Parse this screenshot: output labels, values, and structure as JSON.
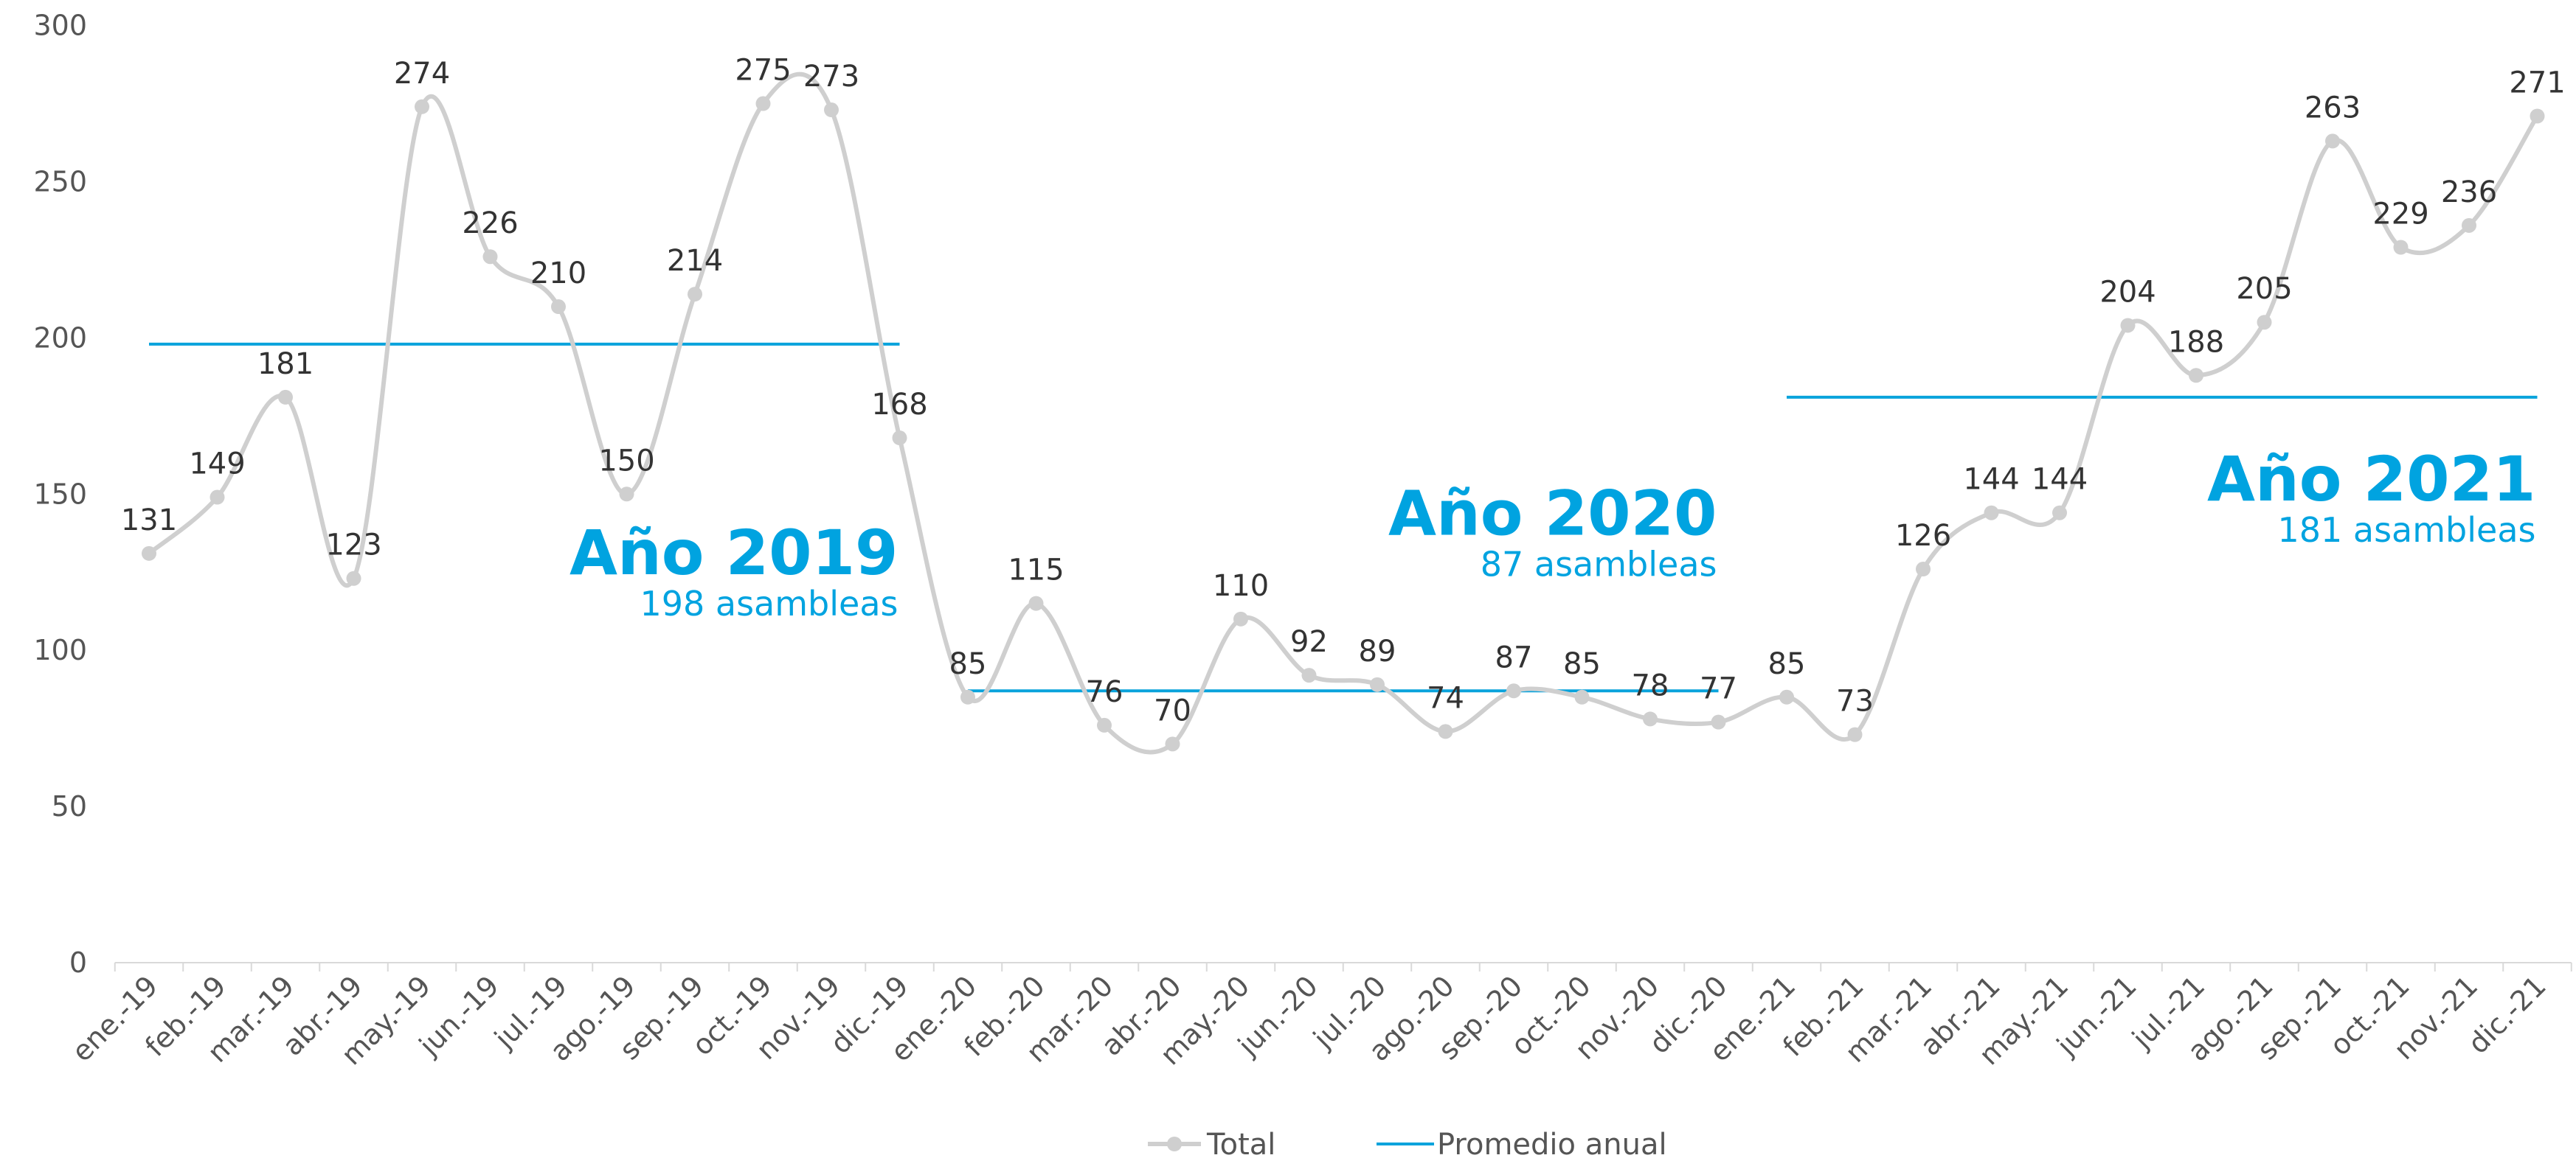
{
  "chart_data": {
    "type": "line",
    "title": "",
    "xlabel": "",
    "ylabel": "",
    "ylim": [
      0,
      300
    ],
    "yticks": [
      0,
      50,
      100,
      150,
      200,
      250,
      300
    ],
    "grid": false,
    "legend_placement": "bottom-center",
    "colors": {
      "total": "#cfcfcf",
      "average": "#0aa3dc",
      "annotation": "#00a3e0"
    },
    "categories": [
      "ene.-19",
      "feb.-19",
      "mar.-19",
      "abr.-19",
      "may.-19",
      "jun.-19",
      "jul.-19",
      "ago.-19",
      "sep.-19",
      "oct.-19",
      "nov.-19",
      "dic.-19",
      "ene.-20",
      "feb.-20",
      "mar.-20",
      "abr.-20",
      "may.-20",
      "jun.-20",
      "jul.-20",
      "ago.-20",
      "sep.-20",
      "oct.-20",
      "nov.-20",
      "dic.-20",
      "ene.-21",
      "feb.-21",
      "mar.-21",
      "abr.-21",
      "may.-21",
      "jun.-21",
      "jul.-21",
      "ago.-21",
      "sep.-21",
      "oct.-21",
      "nov.-21",
      "dic.-21"
    ],
    "series": [
      {
        "name": "Total",
        "values": [
          131,
          149,
          181,
          123,
          274,
          226,
          210,
          150,
          214,
          275,
          273,
          168,
          85,
          115,
          76,
          70,
          110,
          92,
          89,
          74,
          87,
          85,
          78,
          77,
          85,
          73,
          126,
          144,
          144,
          204,
          188,
          205,
          263,
          229,
          236,
          271
        ],
        "labels": [
          "131",
          "149",
          "181",
          "123",
          "274",
          "226",
          "210",
          "150",
          "214",
          "275",
          "273",
          "168",
          "85",
          "115",
          "76",
          "70",
          "110",
          "92",
          "89",
          "74",
          "87",
          "85",
          "78",
          "77",
          "85",
          "73",
          "126",
          "144",
          "144",
          "204",
          "188",
          "205",
          "263",
          "229",
          "236",
          "271"
        ]
      },
      {
        "name": "Promedio anual",
        "segments": [
          {
            "from": "ene.-19",
            "to": "dic.-19",
            "value": 198
          },
          {
            "from": "ene.-20",
            "to": "dic.-20",
            "value": 87
          },
          {
            "from": "ene.-21",
            "to": "dic.-21",
            "value": 181
          }
        ]
      }
    ],
    "annotations": [
      {
        "title": "Año 2019",
        "subtitle": "198 asambleas"
      },
      {
        "title": "Año 2020",
        "subtitle": "87 asambleas"
      },
      {
        "title": "Año 2021",
        "subtitle": "181 asambleas"
      }
    ],
    "legend": [
      "Total",
      "Promedio anual"
    ]
  }
}
